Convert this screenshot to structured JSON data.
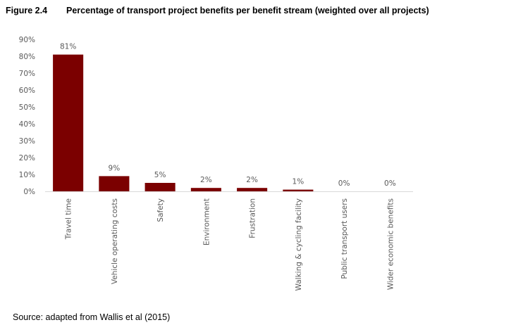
{
  "figure": {
    "label": "Figure 2.4",
    "title": "Percentage of transport project benefits per benefit stream (weighted over all projects)",
    "source": "Source: adapted from Wallis et al (2015)"
  },
  "chart_data": {
    "type": "bar",
    "categories": [
      "Travel time",
      "Vehicle operating costs",
      "Safety",
      "Environment",
      "Frustration",
      "Walking & cycling facility",
      "Public transport users",
      "Wider economic benefits"
    ],
    "values": [
      81,
      9,
      5,
      2,
      2,
      1,
      0,
      0
    ],
    "data_labels": [
      "81%",
      "9%",
      "5%",
      "2%",
      "2%",
      "1%",
      "0%",
      "0%"
    ],
    "yticks": [
      "0%",
      "10%",
      "20%",
      "30%",
      "40%",
      "50%",
      "60%",
      "70%",
      "80%",
      "90%"
    ],
    "ylim": [
      0,
      90
    ],
    "bar_color": "#7b0000",
    "grid": false,
    "legend": "none"
  }
}
